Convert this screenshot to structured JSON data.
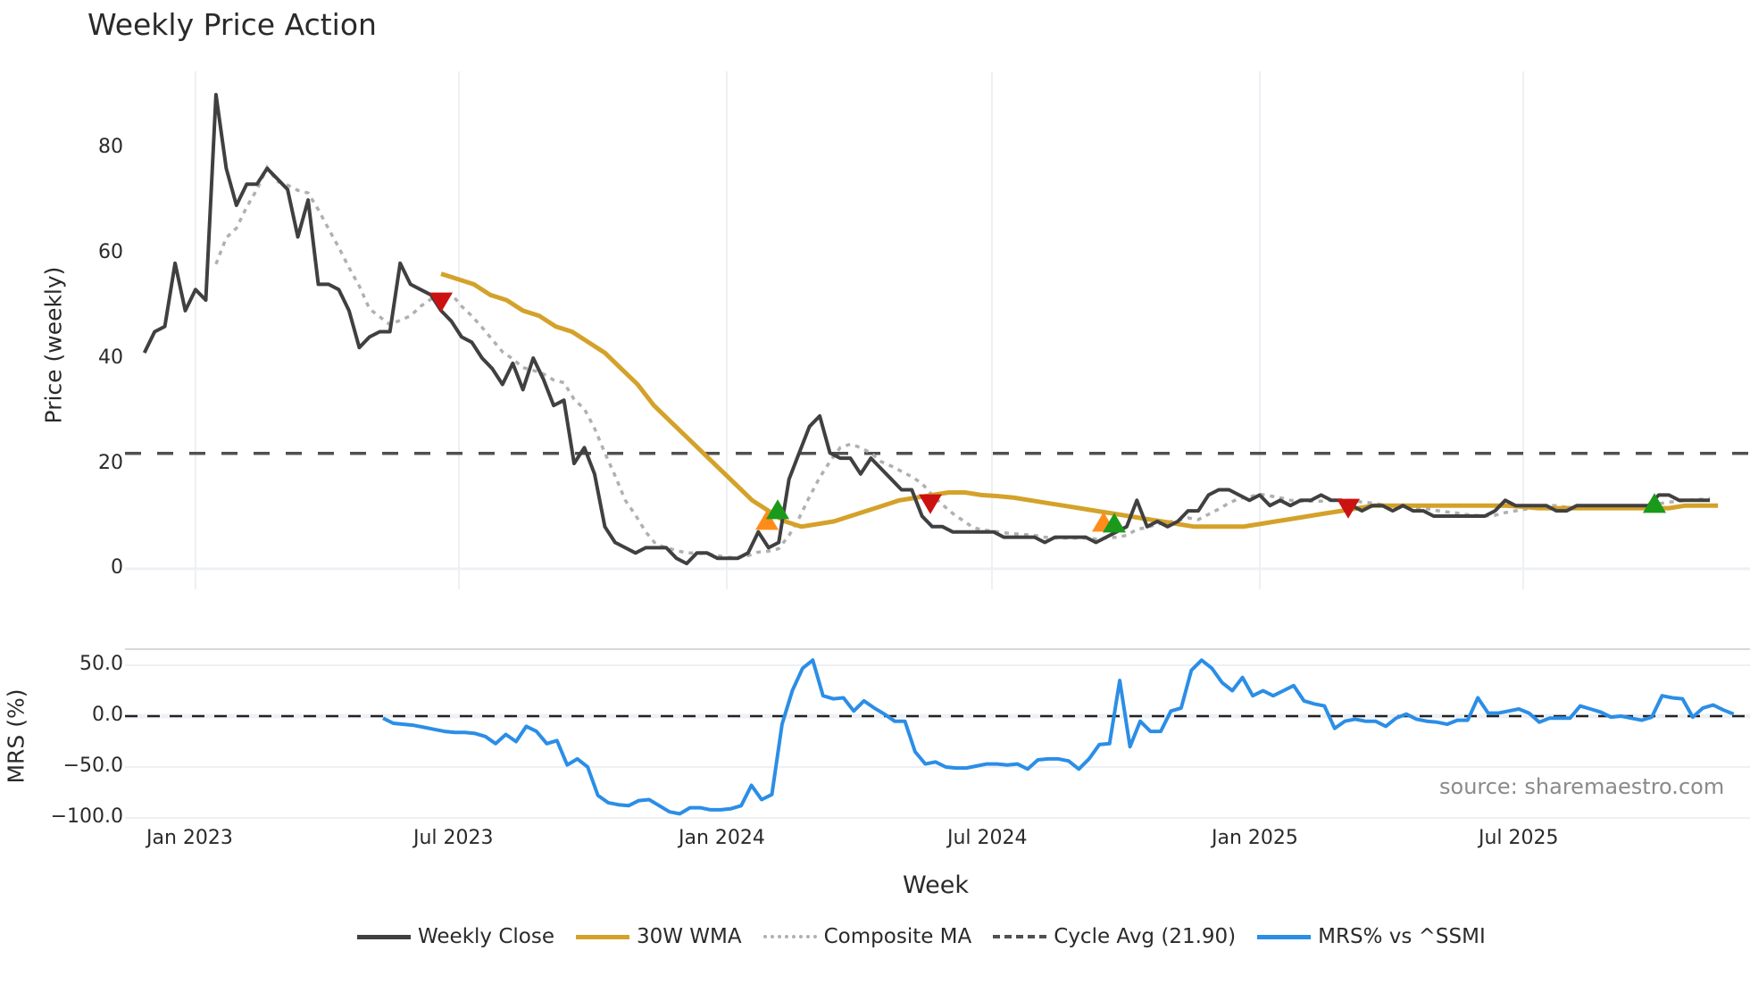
{
  "title": "Weekly Price Action",
  "price_panel": {
    "ylabel": "Price (weekly)",
    "yticks": [
      "0",
      "20",
      "40",
      "60",
      "80"
    ]
  },
  "mrs_panel": {
    "ylabel": "MRS (%)",
    "yticks": [
      "50.0",
      "0.0",
      "−50.0",
      "−100.0"
    ]
  },
  "xaxis": {
    "label": "Week",
    "ticks": [
      "Jan 2023",
      "Jul 2023",
      "Jan 2024",
      "Jul 2024",
      "Jan 2025",
      "Jul 2025"
    ]
  },
  "source": "source: sharemaestro.com",
  "legend": [
    {
      "label": "Weekly Close",
      "color": "#404040",
      "style": "solid"
    },
    {
      "label": "30W WMA",
      "color": "#d4a22a",
      "style": "solid"
    },
    {
      "label": "Composite MA",
      "color": "#b0b0b0",
      "style": "dotted"
    },
    {
      "label": "Cycle Avg (21.90)",
      "color": "#505050",
      "style": "dashed"
    },
    {
      "label": "MRS% vs ^SSMI",
      "color": "#2b8ee6",
      "style": "solid"
    }
  ],
  "colors": {
    "close": "#404040",
    "wma": "#d4a22a",
    "composite": "#b0b0b0",
    "cycle": "#505050",
    "mrs": "#2b8ee6",
    "buy": "#1a9a1a",
    "sell": "#cc1111",
    "cross": "#ff8c1a"
  },
  "chart_data": [
    {
      "type": "line",
      "title": "Weekly Price Action",
      "xlabel": "Week",
      "ylabel": "Price (weekly)",
      "ylim": [
        -4,
        95
      ],
      "x_ticks": [
        "Jan 2023",
        "Jul 2023",
        "Jan 2024",
        "Jul 2024",
        "Jan 2025",
        "Jul 2025"
      ],
      "series": [
        {
          "name": "Weekly Close",
          "x_start": "2022-11-28",
          "freq": "W",
          "values": [
            41,
            45,
            46,
            58,
            49,
            53,
            51,
            90,
            76,
            69,
            73,
            73,
            76,
            74,
            72,
            63,
            70,
            54,
            54,
            53,
            49,
            42,
            44,
            45,
            45,
            58,
            54,
            53,
            52,
            49,
            47,
            44,
            43,
            40,
            38,
            35,
            39,
            34,
            40,
            36,
            31,
            32,
            20,
            23,
            18,
            8,
            5,
            4,
            3,
            4,
            4,
            4,
            2,
            1,
            3,
            3,
            2,
            2,
            2,
            3,
            7,
            4,
            5,
            17,
            22,
            27,
            29,
            22,
            21,
            21,
            18,
            21,
            19,
            17,
            15,
            15,
            10,
            8,
            8,
            7,
            7,
            7,
            7,
            7,
            6,
            6,
            6,
            6,
            5,
            6,
            6,
            6,
            6,
            5,
            6,
            7,
            8,
            13,
            8,
            9,
            8,
            9,
            11,
            11,
            14,
            15,
            15,
            14,
            13,
            14,
            12,
            13,
            12,
            13,
            13,
            14,
            13,
            13,
            12,
            11,
            12,
            12,
            11,
            12,
            11,
            11,
            10,
            10,
            10,
            10,
            10,
            10,
            11,
            13,
            12,
            12,
            12,
            12,
            11,
            11,
            12,
            12,
            12,
            12,
            12,
            12,
            12,
            12,
            14,
            14,
            13,
            13,
            13,
            13
          ]
        },
        {
          "name": "30W WMA",
          "values_note": "starts Jun 2023",
          "values": [
            56,
            55,
            54,
            52,
            51,
            49,
            48,
            46,
            45,
            43,
            41,
            38,
            35,
            31,
            28,
            25,
            22,
            19,
            16,
            13,
            11,
            9,
            8,
            8.5,
            9,
            10,
            11,
            12,
            13,
            13.5,
            14,
            14.5,
            14.5,
            14,
            13.8,
            13.5,
            13,
            12.5,
            12,
            11.5,
            11,
            10.5,
            10,
            9.5,
            9,
            8.5,
            8,
            8,
            8,
            8,
            8.5,
            9,
            9.5,
            10,
            10.5,
            11,
            11.5,
            12,
            12,
            12,
            12,
            12,
            12,
            12,
            12,
            12,
            11.8,
            11.5,
            11.5,
            11.5,
            11.5,
            11.5,
            11.5,
            11.5,
            11.5,
            11.5,
            12,
            12,
            12
          ]
        },
        {
          "name": "Composite MA",
          "values_note": "approximate"
        },
        {
          "name": "Cycle Avg (21.90)",
          "values": [
            21.9
          ]
        }
      ],
      "markers": [
        {
          "type": "sell",
          "date": "2023-06",
          "y": 51
        },
        {
          "type": "cross",
          "date": "2024-02",
          "y": 9
        },
        {
          "type": "buy",
          "date": "2024-02",
          "y": 11
        },
        {
          "type": "sell",
          "date": "2024-05",
          "y": 12
        },
        {
          "type": "cross",
          "date": "2024-10",
          "y": 8.5
        },
        {
          "type": "buy",
          "date": "2024-10",
          "y": 8.5
        },
        {
          "type": "sell",
          "date": "2025-03",
          "y": 11.5
        },
        {
          "type": "buy",
          "date": "2025-10",
          "y": 12.5
        }
      ]
    },
    {
      "type": "line",
      "ylabel": "MRS (%)",
      "ylim": [
        -105,
        65
      ],
      "series": [
        {
          "name": "MRS% vs ^SSMI",
          "x_start": "2023-05-22",
          "freq": "W",
          "values": [
            -2,
            -7,
            -8,
            -9,
            -11,
            -13,
            -15,
            -16,
            -16,
            -17,
            -20,
            -27,
            -18,
            -25,
            -10,
            -15,
            -27,
            -24,
            -48,
            -42,
            -50,
            -78,
            -85,
            -87,
            -88,
            -83,
            -82,
            -88,
            -94,
            -96,
            -90,
            -90,
            -92,
            -92,
            -91,
            -88,
            -68,
            -82,
            -77,
            -8,
            25,
            47,
            55,
            20,
            17,
            18,
            5,
            15,
            8,
            2,
            -5,
            -5,
            -35,
            -47,
            -45,
            -50,
            -51,
            -51,
            -49,
            -47,
            -47,
            -48,
            -47,
            -52,
            -43,
            -42,
            -42,
            -44,
            -52,
            -42,
            -28,
            -27,
            35,
            -30,
            -5,
            -15,
            -15,
            5,
            8,
            45,
            55,
            47,
            33,
            25,
            38,
            20,
            25,
            20,
            25,
            30,
            15,
            12,
            10,
            -12,
            -5,
            -3,
            -5,
            -5,
            -10,
            -2,
            2,
            -3,
            -5,
            -6,
            -8,
            -4,
            -4,
            18,
            3,
            3,
            5,
            7,
            3,
            -6,
            -2,
            -2,
            -2,
            10,
            7,
            4,
            -1,
            0,
            -2,
            -4,
            -1,
            20,
            18,
            17,
            -1,
            8,
            11,
            6,
            2
          ]
        },
        {
          "name": "zero line",
          "values": [
            0
          ]
        }
      ]
    }
  ]
}
